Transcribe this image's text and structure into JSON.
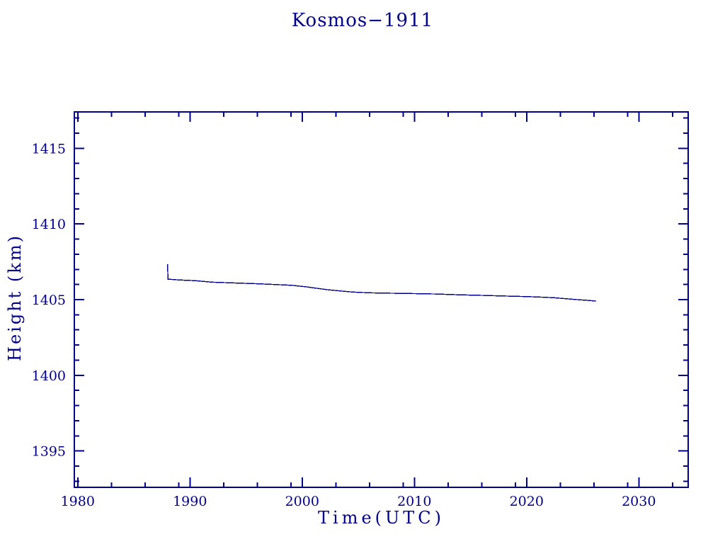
{
  "page": {
    "background_color": "#FFFFFF",
    "accent_color": "#00008B"
  },
  "chart_data": {
    "type": "line",
    "title": "Kosmos−1911",
    "xlabel": "Time(UTC)",
    "ylabel": "Height (km)",
    "xlim": [
      1979.7,
      2034.4
    ],
    "ylim": [
      1392.6,
      1417.4
    ],
    "x_major_ticks": [
      1980,
      1990,
      2000,
      2010,
      2020,
      2030
    ],
    "x_minor_offsets_years": [
      3,
      6,
      9
    ],
    "y_major_ticks": [
      1395,
      1400,
      1405,
      1410,
      1415
    ],
    "y_minor_step": 1,
    "grid": false,
    "legend": null,
    "line_color": "#00008B",
    "frame_color": "#00008B",
    "series": [
      {
        "name": "height-km",
        "points": [
          [
            1988.0,
            1407.35
          ],
          [
            1988.05,
            1406.35
          ],
          [
            1989.0,
            1406.3
          ],
          [
            1990.5,
            1406.25
          ],
          [
            1992.0,
            1406.15
          ],
          [
            1994.0,
            1406.1
          ],
          [
            1996.0,
            1406.05
          ],
          [
            1997.5,
            1406.0
          ],
          [
            1999.0,
            1405.95
          ],
          [
            2000.3,
            1405.85
          ],
          [
            2001.3,
            1405.75
          ],
          [
            2002.3,
            1405.65
          ],
          [
            2003.3,
            1405.58
          ],
          [
            2004.5,
            1405.5
          ],
          [
            2006.0,
            1405.45
          ],
          [
            2008.0,
            1405.42
          ],
          [
            2010.0,
            1405.4
          ],
          [
            2012.0,
            1405.37
          ],
          [
            2014.0,
            1405.32
          ],
          [
            2016.0,
            1405.28
          ],
          [
            2018.0,
            1405.24
          ],
          [
            2020.0,
            1405.2
          ],
          [
            2021.5,
            1405.16
          ],
          [
            2022.5,
            1405.12
          ],
          [
            2023.5,
            1405.06
          ],
          [
            2024.5,
            1405.0
          ],
          [
            2025.5,
            1404.95
          ],
          [
            2026.2,
            1404.9
          ]
        ]
      }
    ]
  }
}
